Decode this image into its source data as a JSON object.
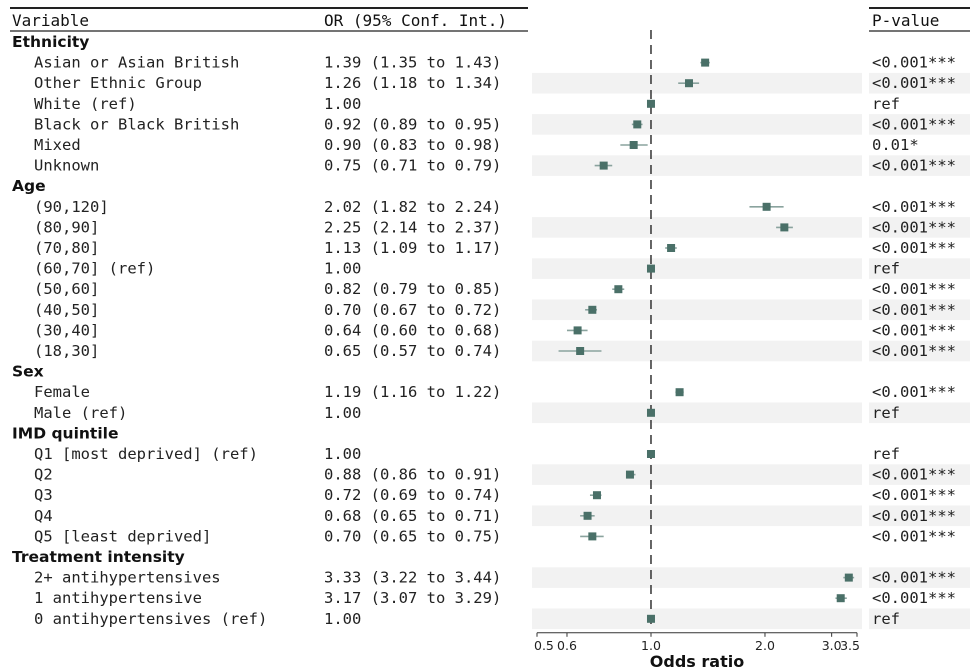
{
  "headers": {
    "variable": "Variable",
    "or": "OR (95% Conf. Int.)",
    "p": "P-value"
  },
  "chart_data": {
    "type": "forest",
    "xlabel": "Odds ratio",
    "x_scale": "log",
    "xlim": [
      0.5,
      3.5
    ],
    "reference_line": 1.0,
    "x_ticks": [
      {
        "value": 0.5,
        "label": "0.5"
      },
      {
        "value": 0.6,
        "label": "0.6"
      },
      {
        "value": 1.0,
        "label": "1.0"
      },
      {
        "value": 2.0,
        "label": "2.0"
      },
      {
        "value": 3.0,
        "label": "3.0"
      },
      {
        "value": 3.5,
        "label": "3.5"
      }
    ],
    "colors": {
      "marker": "#4a7068",
      "ci": "#8aa39e",
      "stripe": "#f2f2f2",
      "ref_line": "#333333"
    },
    "rows": [
      {
        "kind": "group",
        "label": "Ethnicity"
      },
      {
        "kind": "item",
        "label": "Asian or Asian British",
        "ci_text": "1.39 (1.35 to 1.43)",
        "or": 1.39,
        "lo": 1.35,
        "hi": 1.43,
        "p": "<0.001***"
      },
      {
        "kind": "item",
        "label": "Other Ethnic Group",
        "ci_text": "1.26 (1.18 to 1.34)",
        "or": 1.26,
        "lo": 1.18,
        "hi": 1.34,
        "p": "<0.001***"
      },
      {
        "kind": "item",
        "label": "White (ref)",
        "ci_text": "1.00",
        "or": 1.0,
        "lo": 1.0,
        "hi": 1.0,
        "p": "ref"
      },
      {
        "kind": "item",
        "label": "Black or Black British",
        "ci_text": "0.92 (0.89 to 0.95)",
        "or": 0.92,
        "lo": 0.89,
        "hi": 0.95,
        "p": "<0.001***"
      },
      {
        "kind": "item",
        "label": "Mixed",
        "ci_text": "0.90 (0.83 to 0.98)",
        "or": 0.9,
        "lo": 0.83,
        "hi": 0.98,
        "p": "0.01*"
      },
      {
        "kind": "item",
        "label": "Unknown",
        "ci_text": "0.75 (0.71 to 0.79)",
        "or": 0.75,
        "lo": 0.71,
        "hi": 0.79,
        "p": "<0.001***"
      },
      {
        "kind": "group",
        "label": "Age"
      },
      {
        "kind": "item",
        "label": "(90,120]",
        "ci_text": "2.02 (1.82 to 2.24)",
        "or": 2.02,
        "lo": 1.82,
        "hi": 2.24,
        "p": "<0.001***"
      },
      {
        "kind": "item",
        "label": "(80,90]",
        "ci_text": "2.25 (2.14 to 2.37)",
        "or": 2.25,
        "lo": 2.14,
        "hi": 2.37,
        "p": "<0.001***"
      },
      {
        "kind": "item",
        "label": "(70,80]",
        "ci_text": "1.13 (1.09 to 1.17)",
        "or": 1.13,
        "lo": 1.09,
        "hi": 1.17,
        "p": "<0.001***"
      },
      {
        "kind": "item",
        "label": "(60,70] (ref)",
        "ci_text": "1.00",
        "or": 1.0,
        "lo": 1.0,
        "hi": 1.0,
        "p": "ref"
      },
      {
        "kind": "item",
        "label": "(50,60]",
        "ci_text": "0.82 (0.79 to 0.85)",
        "or": 0.82,
        "lo": 0.79,
        "hi": 0.85,
        "p": "<0.001***"
      },
      {
        "kind": "item",
        "label": "(40,50]",
        "ci_text": "0.70 (0.67 to 0.72)",
        "or": 0.7,
        "lo": 0.67,
        "hi": 0.72,
        "p": "<0.001***"
      },
      {
        "kind": "item",
        "label": "(30,40]",
        "ci_text": "0.64 (0.60 to 0.68)",
        "or": 0.64,
        "lo": 0.6,
        "hi": 0.68,
        "p": "<0.001***"
      },
      {
        "kind": "item",
        "label": "(18,30]",
        "ci_text": "0.65 (0.57 to 0.74)",
        "or": 0.65,
        "lo": 0.57,
        "hi": 0.74,
        "p": "<0.001***"
      },
      {
        "kind": "group",
        "label": "Sex"
      },
      {
        "kind": "item",
        "label": "Female",
        "ci_text": "1.19 (1.16 to 1.22)",
        "or": 1.19,
        "lo": 1.16,
        "hi": 1.22,
        "p": "<0.001***"
      },
      {
        "kind": "item",
        "label": "Male (ref)",
        "ci_text": "1.00",
        "or": 1.0,
        "lo": 1.0,
        "hi": 1.0,
        "p": "ref"
      },
      {
        "kind": "group",
        "label": "IMD quintile"
      },
      {
        "kind": "item",
        "label": "Q1 [most deprived] (ref)",
        "ci_text": "1.00",
        "or": 1.0,
        "lo": 1.0,
        "hi": 1.0,
        "p": "ref"
      },
      {
        "kind": "item",
        "label": "Q2",
        "ci_text": "0.88 (0.86 to 0.91)",
        "or": 0.88,
        "lo": 0.86,
        "hi": 0.91,
        "p": "<0.001***"
      },
      {
        "kind": "item",
        "label": "Q3",
        "ci_text": "0.72 (0.69 to 0.74)",
        "or": 0.72,
        "lo": 0.69,
        "hi": 0.74,
        "p": "<0.001***"
      },
      {
        "kind": "item",
        "label": "Q4",
        "ci_text": "0.68 (0.65 to 0.71)",
        "or": 0.68,
        "lo": 0.65,
        "hi": 0.71,
        "p": "<0.001***"
      },
      {
        "kind": "item",
        "label": "Q5 [least deprived]",
        "ci_text": "0.70 (0.65 to 0.75)",
        "or": 0.7,
        "lo": 0.65,
        "hi": 0.75,
        "p": "<0.001***"
      },
      {
        "kind": "group",
        "label": "Treatment intensity"
      },
      {
        "kind": "item",
        "label": "2+ antihypertensives",
        "ci_text": "3.33 (3.22 to 3.44)",
        "or": 3.33,
        "lo": 3.22,
        "hi": 3.44,
        "p": "<0.001***"
      },
      {
        "kind": "item",
        "label": "1 antihypertensive",
        "ci_text": "3.17 (3.07 to 3.29)",
        "or": 3.17,
        "lo": 3.07,
        "hi": 3.29,
        "p": "<0.001***"
      },
      {
        "kind": "item",
        "label": "0 antihypertensives (ref)",
        "ci_text": "1.00",
        "or": 1.0,
        "lo": 1.0,
        "hi": 1.0,
        "p": "ref"
      }
    ]
  }
}
